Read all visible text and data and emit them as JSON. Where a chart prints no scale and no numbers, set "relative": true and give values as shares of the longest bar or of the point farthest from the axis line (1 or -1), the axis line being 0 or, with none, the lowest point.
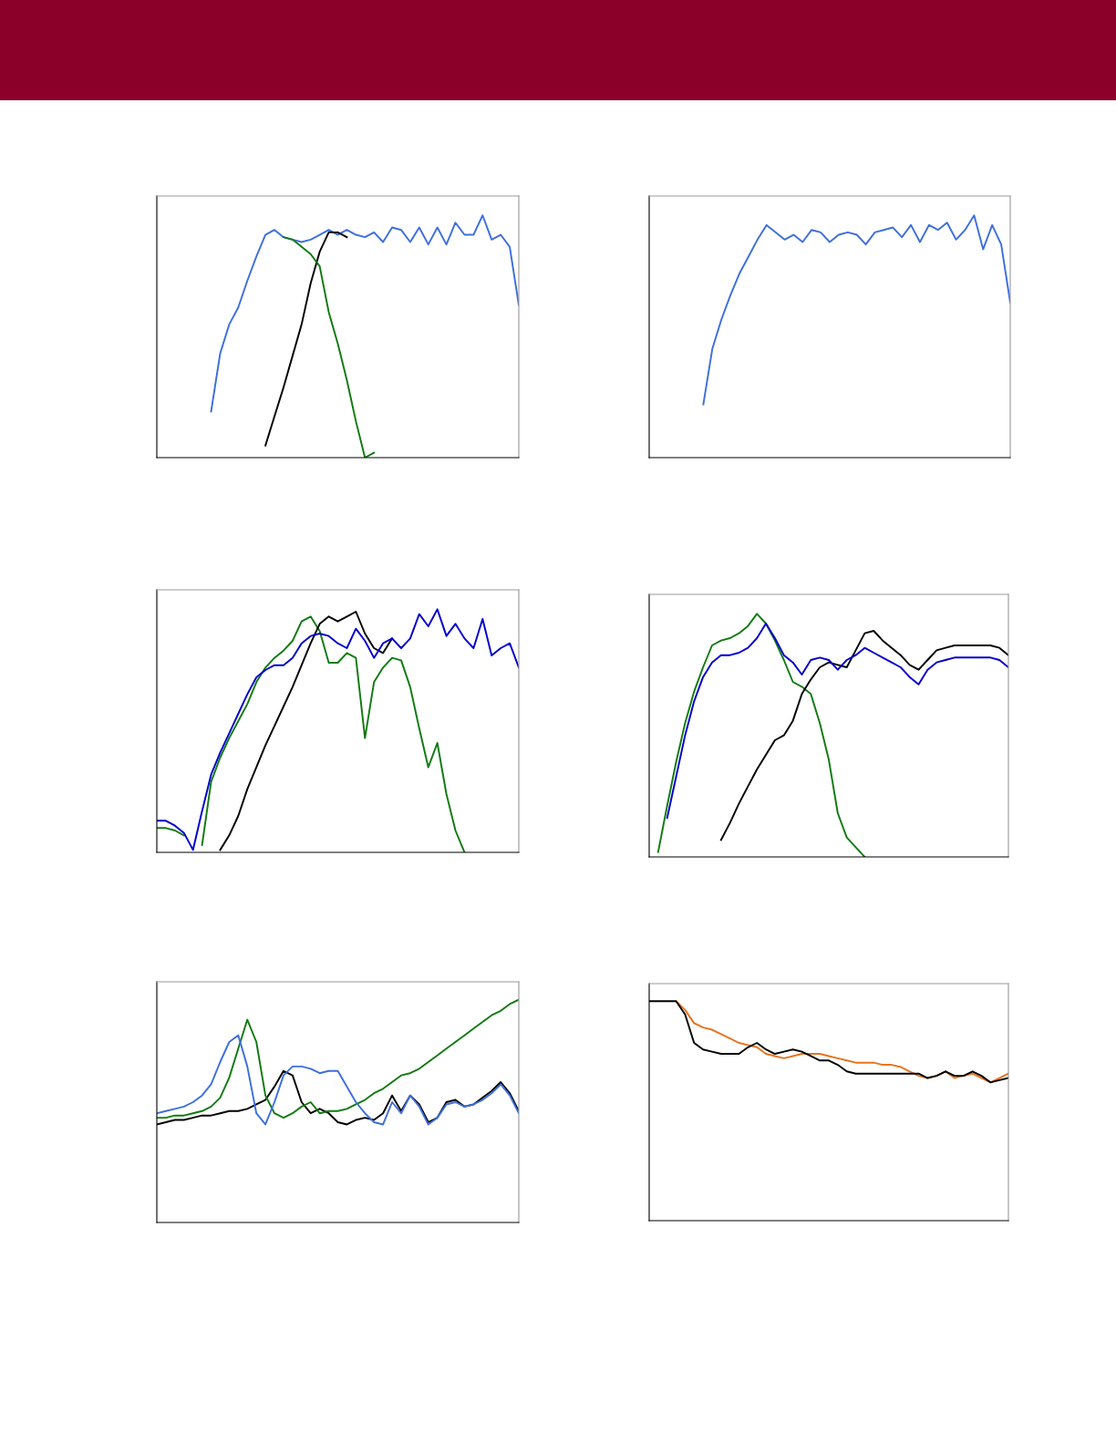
{
  "chart_data": [
    {
      "type": "line",
      "relative": true,
      "tick_labels": false,
      "categories": [
        null,
        null,
        null,
        null,
        null,
        null,
        null,
        null,
        null,
        null,
        null,
        null,
        null,
        null,
        null,
        null,
        null,
        null,
        null,
        null,
        null,
        null,
        null,
        null,
        null,
        null,
        null,
        null,
        null,
        null,
        null,
        null,
        null,
        null,
        null,
        null,
        null,
        null,
        null,
        null,
        null
      ],
      "series": [
        {
          "color": "#3e6fdd",
          "values": [
            null,
            null,
            null,
            null,
            null,
            null,
            0.19,
            0.43,
            0.55,
            0.62,
            0.73,
            0.83,
            0.92,
            0.94,
            0.91,
            0.9,
            0.89,
            0.9,
            0.92,
            0.94,
            0.92,
            0.94,
            0.92,
            0.91,
            0.93,
            0.89,
            0.95,
            0.94,
            0.89,
            0.95,
            0.88,
            0.95,
            0.88,
            0.97,
            0.92,
            0.92,
            1.0,
            0.9,
            0.92,
            0.87,
            0.63
          ]
        },
        {
          "color": "#000000",
          "values": [
            null,
            null,
            null,
            null,
            null,
            null,
            null,
            null,
            null,
            null,
            null,
            null,
            0.05,
            0.17,
            0.29,
            0.42,
            0.55,
            0.72,
            0.85,
            0.93,
            0.93,
            0.91,
            null,
            null,
            null,
            null,
            null,
            null,
            null,
            null,
            null,
            null,
            null,
            null,
            null,
            null,
            null,
            null,
            null,
            null,
            null
          ]
        },
        {
          "color": "#117a11",
          "values": [
            null,
            null,
            null,
            null,
            null,
            null,
            null,
            null,
            null,
            null,
            null,
            null,
            null,
            null,
            0.91,
            0.9,
            0.87,
            0.84,
            0.79,
            0.6,
            0.47,
            0.32,
            0.15,
            0,
            0.02,
            null,
            null,
            null,
            null,
            null,
            null,
            null,
            null,
            null,
            null,
            null,
            null,
            null,
            null,
            null,
            null
          ]
        }
      ]
    },
    {
      "type": "line",
      "relative": true,
      "tick_labels": false,
      "categories": [
        null,
        null,
        null,
        null,
        null,
        null,
        null,
        null,
        null,
        null,
        null,
        null,
        null,
        null,
        null,
        null,
        null,
        null,
        null,
        null,
        null,
        null,
        null,
        null,
        null,
        null,
        null,
        null,
        null,
        null,
        null,
        null,
        null,
        null,
        null,
        null,
        null,
        null,
        null,
        null,
        null
      ],
      "series": [
        {
          "color": "#3e6fdd",
          "values": [
            null,
            null,
            null,
            null,
            null,
            null,
            0.22,
            0.45,
            0.57,
            0.67,
            0.76,
            0.83,
            0.9,
            0.96,
            0.93,
            0.9,
            0.92,
            0.89,
            0.94,
            0.93,
            0.89,
            0.92,
            0.93,
            0.92,
            0.88,
            0.93,
            0.94,
            0.95,
            0.91,
            0.96,
            0.89,
            0.96,
            0.94,
            0.97,
            0.9,
            0.94,
            1.0,
            0.86,
            0.96,
            0.88,
            0.64
          ]
        }
      ]
    },
    {
      "type": "line",
      "relative": true,
      "tick_labels": false,
      "categories": [
        null,
        null,
        null,
        null,
        null,
        null,
        null,
        null,
        null,
        null,
        null,
        null,
        null,
        null,
        null,
        null,
        null,
        null,
        null,
        null,
        null,
        null,
        null,
        null,
        null,
        null,
        null,
        null,
        null,
        null,
        null,
        null,
        null,
        null,
        null,
        null,
        null,
        null,
        null,
        null,
        null
      ],
      "series": [
        {
          "color": "#117a11",
          "values": [
            0.1,
            0.1,
            0.09,
            0.07,
            null,
            0.03,
            0.29,
            0.39,
            0.47,
            0.54,
            0.61,
            0.7,
            0.76,
            0.8,
            0.83,
            0.87,
            0.95,
            0.97,
            0.91,
            0.78,
            0.78,
            0.82,
            0.8,
            0.47,
            0.7,
            0.76,
            0.8,
            0.79,
            0.68,
            0.51,
            0.35,
            0.45,
            0.24,
            0.09,
            0,
            null,
            null,
            null,
            null,
            null,
            null
          ]
        },
        {
          "color": "#000000",
          "values": [
            null,
            null,
            null,
            null,
            null,
            null,
            null,
            0.01,
            0.07,
            0.15,
            0.26,
            0.35,
            0.44,
            0.52,
            0.6,
            0.68,
            0.77,
            0.86,
            0.94,
            0.97,
            0.95,
            0.97,
            0.99,
            0.9,
            0.84,
            0.82,
            0.88,
            null,
            null,
            null,
            null,
            null,
            null,
            null,
            null,
            null,
            null,
            null,
            null,
            null,
            null
          ]
        },
        {
          "color": "#0000cc",
          "values": [
            0.13,
            0.13,
            0.11,
            0.08,
            0.01,
            0.17,
            0.32,
            0.41,
            0.49,
            0.57,
            0.65,
            0.72,
            0.75,
            0.77,
            0.77,
            0.8,
            0.86,
            0.89,
            0.9,
            0.89,
            0.86,
            0.84,
            0.92,
            0.87,
            0.8,
            0.86,
            0.88,
            0.84,
            0.88,
            0.98,
            0.93,
            1.0,
            0.89,
            0.94,
            0.88,
            0.84,
            0.96,
            0.81,
            0.84,
            0.86,
            0.76
          ]
        }
      ]
    },
    {
      "type": "line",
      "relative": true,
      "tick_labels": false,
      "categories": [
        null,
        null,
        null,
        null,
        null,
        null,
        null,
        null,
        null,
        null,
        null,
        null,
        null,
        null,
        null,
        null,
        null,
        null,
        null,
        null,
        null,
        null,
        null,
        null,
        null,
        null,
        null,
        null,
        null,
        null,
        null,
        null,
        null,
        null,
        null,
        null,
        null,
        null,
        null,
        null,
        null
      ],
      "series": [
        {
          "color": "#117a11",
          "values": [
            null,
            0.02,
            0.21,
            0.39,
            0.55,
            0.68,
            0.78,
            0.87,
            0.89,
            0.9,
            0.92,
            0.95,
            1.0,
            0.96,
            0.89,
            0.81,
            0.72,
            0.7,
            0.67,
            0.55,
            0.4,
            0.18,
            0.08,
            0.04,
            0,
            null,
            null,
            null,
            null,
            null,
            null,
            null,
            null,
            null,
            null,
            null,
            null,
            null,
            null,
            null,
            null
          ]
        },
        {
          "color": "#000000",
          "values": [
            null,
            null,
            null,
            null,
            null,
            null,
            null,
            null,
            0.07,
            0.14,
            0.22,
            0.29,
            0.36,
            0.42,
            0.48,
            0.5,
            0.56,
            0.67,
            0.73,
            0.78,
            0.8,
            0.79,
            0.78,
            0.85,
            0.92,
            0.93,
            0.89,
            0.86,
            0.83,
            0.79,
            0.77,
            0.81,
            0.85,
            0.86,
            0.87,
            0.87,
            0.87,
            0.87,
            0.87,
            0.86,
            0.83
          ]
        },
        {
          "color": "#0000cc",
          "values": [
            null,
            null,
            0.16,
            0.33,
            0.5,
            0.64,
            0.74,
            0.8,
            0.83,
            0.83,
            0.84,
            0.86,
            0.9,
            0.96,
            0.9,
            0.83,
            0.8,
            0.75,
            0.81,
            0.82,
            0.81,
            0.77,
            0.81,
            0.83,
            0.86,
            0.84,
            0.82,
            0.8,
            0.78,
            0.74,
            0.71,
            0.77,
            0.8,
            0.81,
            0.82,
            0.82,
            0.82,
            0.82,
            0.82,
            0.81,
            0.78
          ]
        }
      ]
    },
    {
      "type": "line",
      "relative": true,
      "tick_labels": false,
      "categories": [
        null,
        null,
        null,
        null,
        null,
        null,
        null,
        null,
        null,
        null,
        null,
        null,
        null,
        null,
        null,
        null,
        null,
        null,
        null,
        null,
        null,
        null,
        null,
        null,
        null,
        null,
        null,
        null,
        null,
        null,
        null,
        null,
        null,
        null,
        null,
        null,
        null,
        null,
        null,
        null,
        null
      ],
      "series": [
        {
          "color": "#000000",
          "values": [
            0.44,
            0.45,
            0.46,
            0.46,
            0.47,
            0.48,
            0.48,
            0.49,
            0.5,
            0.5,
            0.51,
            0.53,
            0.55,
            0.61,
            0.68,
            0.66,
            0.54,
            0.49,
            0.51,
            0.49,
            0.45,
            0.44,
            0.46,
            0.47,
            0.46,
            0.49,
            0.57,
            0.5,
            0.57,
            0.53,
            0.45,
            0.47,
            0.54,
            0.55,
            0.52,
            0.53,
            0.56,
            0.59,
            0.63,
            0.58,
            0.5
          ]
        },
        {
          "color": "#117a11",
          "values": [
            0.47,
            0.47,
            0.48,
            0.48,
            0.49,
            0.5,
            0.52,
            0.56,
            0.65,
            0.78,
            0.91,
            0.81,
            0.57,
            0.49,
            0.47,
            0.49,
            0.52,
            0.54,
            0.49,
            0.5,
            0.5,
            0.51,
            0.53,
            0.55,
            0.58,
            0.6,
            0.63,
            0.66,
            0.67,
            0.69,
            0.72,
            0.75,
            0.78,
            0.81,
            0.84,
            0.87,
            0.9,
            0.93,
            0.95,
            0.98,
            1.0
          ]
        },
        {
          "color": "#3e6fdd",
          "values": [
            0.49,
            0.5,
            0.51,
            0.52,
            0.54,
            0.57,
            0.62,
            0.72,
            0.81,
            0.84,
            0.7,
            0.49,
            0.44,
            0.54,
            0.66,
            0.7,
            0.7,
            0.69,
            0.67,
            0.68,
            0.68,
            0.61,
            0.54,
            0.49,
            0.45,
            0.44,
            0.54,
            0.49,
            0.57,
            0.52,
            0.44,
            0.47,
            0.53,
            0.54,
            0.52,
            0.53,
            0.55,
            0.58,
            0.62,
            0.57,
            0.49
          ]
        }
      ]
    },
    {
      "type": "line",
      "relative": true,
      "tick_labels": false,
      "categories": [
        null,
        null,
        null,
        null,
        null,
        null,
        null,
        null,
        null,
        null,
        null,
        null,
        null,
        null,
        null,
        null,
        null,
        null,
        null,
        null,
        null,
        null,
        null,
        null,
        null,
        null,
        null,
        null,
        null,
        null,
        null,
        null,
        null,
        null,
        null,
        null,
        null,
        null,
        null,
        null,
        null
      ],
      "series": [
        {
          "color": "#e8731e",
          "values": [
            null,
            null,
            null,
            1.0,
            0.96,
            0.9,
            0.88,
            0.87,
            0.85,
            0.83,
            0.81,
            0.8,
            0.79,
            0.76,
            0.75,
            0.74,
            0.75,
            0.76,
            0.76,
            0.76,
            0.75,
            0.74,
            0.73,
            0.72,
            0.72,
            0.72,
            0.71,
            0.71,
            0.7,
            0.68,
            0.66,
            0.65,
            0.66,
            0.68,
            0.65,
            0.66,
            0.67,
            0.65,
            0.63,
            0.65,
            0.67
          ]
        },
        {
          "color": "#000000",
          "values": [
            1.0,
            1.0,
            1.0,
            1.0,
            0.94,
            0.81,
            0.78,
            0.77,
            0.76,
            0.76,
            0.76,
            0.79,
            0.81,
            0.78,
            0.76,
            0.77,
            0.78,
            0.77,
            0.75,
            0.73,
            0.73,
            0.71,
            0.68,
            0.67,
            0.67,
            0.67,
            0.67,
            0.67,
            0.67,
            0.67,
            0.67,
            0.65,
            0.66,
            0.68,
            0.66,
            0.66,
            0.68,
            0.66,
            0.63,
            0.64,
            0.65
          ]
        }
      ]
    }
  ]
}
